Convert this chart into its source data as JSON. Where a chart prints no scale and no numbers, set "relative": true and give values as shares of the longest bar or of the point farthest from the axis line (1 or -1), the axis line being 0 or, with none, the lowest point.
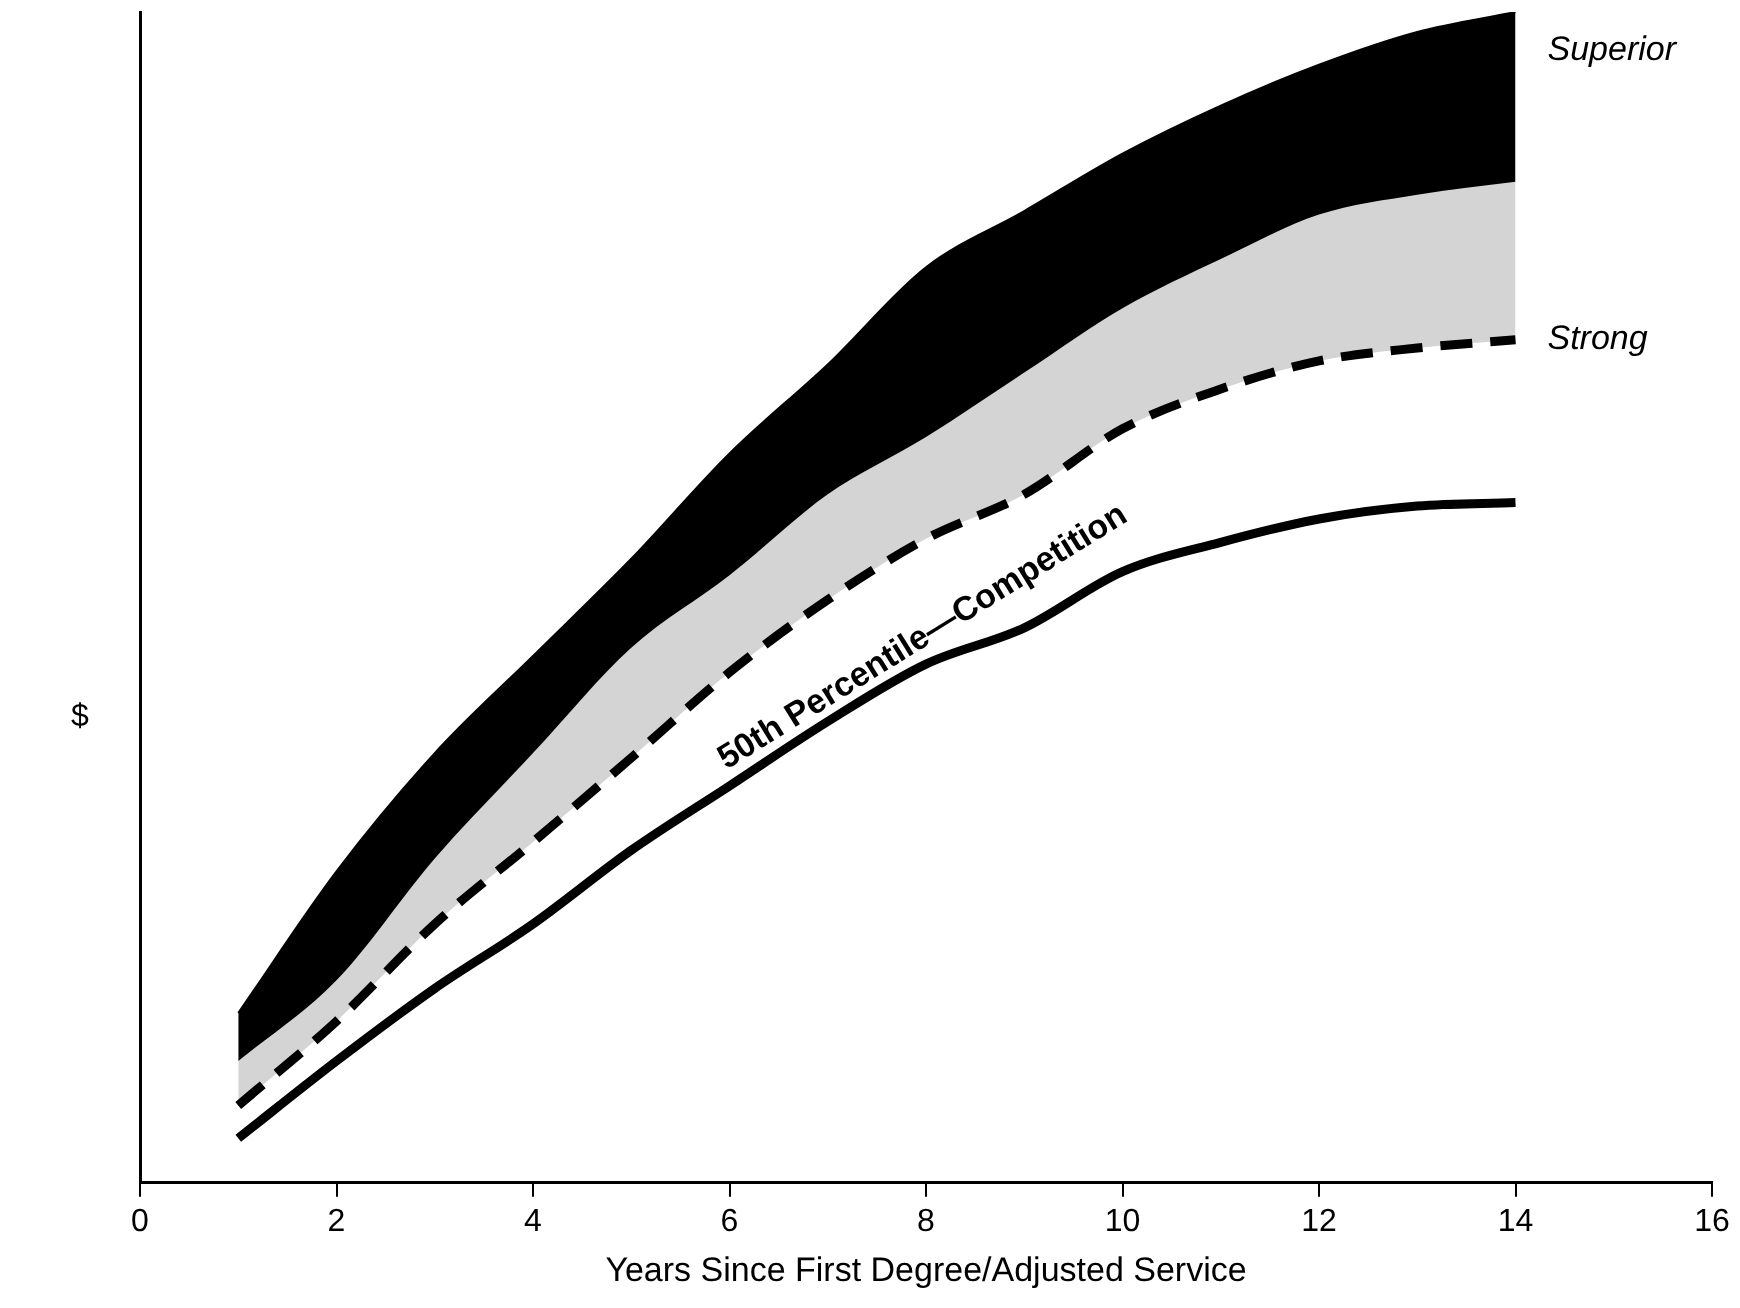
{
  "chart_data": {
    "type": "line",
    "relative": true,
    "xlabel": "Years Since First Degree/Adjusted Service",
    "ylabel": "$",
    "xlim": [
      0,
      16
    ],
    "xticks": [
      0,
      2,
      4,
      6,
      8,
      10,
      12,
      14,
      16
    ],
    "grid": false,
    "legend": false,
    "marker": "none",
    "x": [
      1,
      2,
      3,
      4,
      5,
      6,
      7,
      8,
      9,
      10,
      11,
      12,
      13,
      14
    ],
    "series": [
      {
        "name": "Superior",
        "type": "area",
        "color": "#000000",
        "values": [
          0.145,
          0.266,
          0.367,
          0.45,
          0.533,
          0.623,
          0.699,
          0.782,
          0.83,
          0.879,
          0.92,
          0.955,
          0.983,
          1
        ]
      },
      {
        "type": "area",
        "color": "#d4d4d4",
        "values": [
          0.104,
          0.173,
          0.277,
          0.367,
          0.457,
          0.519,
          0.588,
          0.637,
          0.692,
          0.747,
          0.789,
          0.827,
          0.844,
          0.855
        ]
      },
      {
        "name": "Strong",
        "line_style": "dashed",
        "color": "#000000",
        "values": [
          0.066,
          0.138,
          0.221,
          0.291,
          0.363,
          0.436,
          0.498,
          0.55,
          0.588,
          0.644,
          0.678,
          0.702,
          0.713,
          0.72
        ]
      },
      {
        "name": "50th Percentile—Competition",
        "line_style": "solid",
        "color": "#000000",
        "values": [
          0.038,
          0.104,
          0.166,
          0.221,
          0.284,
          0.339,
          0.394,
          0.443,
          0.474,
          0.522,
          0.547,
          0.567,
          0.578,
          0.581
        ]
      }
    ]
  }
}
